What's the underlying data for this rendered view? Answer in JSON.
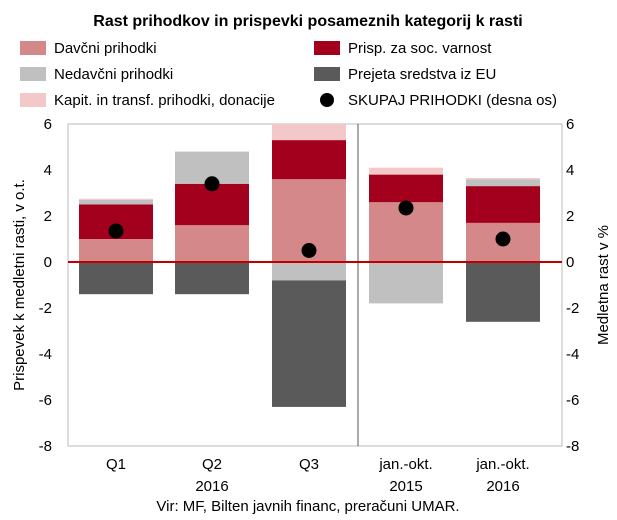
{
  "chart_data": {
    "type": "bar",
    "title": "Rast prihodkov in prispevki posameznih kategorij k rasti",
    "ylabel": "Prispevek k medletni rasti, v o.t.",
    "y2label": "Medletna rast v %",
    "ylim": [
      -8,
      6
    ],
    "y2lim": [
      -8,
      6
    ],
    "yticks": [
      "6",
      "4",
      "2",
      "0",
      "-2",
      "-4",
      "-6",
      "-8"
    ],
    "y2ticks": [
      "6",
      "4",
      "2",
      "0",
      "-2",
      "-4",
      "-6",
      "-8"
    ],
    "categories": [
      "Q1",
      "Q2",
      "Q3",
      "jan.-okt.",
      "jan.-okt."
    ],
    "group_labels": [
      "2016",
      "2015",
      "2016"
    ],
    "series": [
      {
        "name": "Davčni prihodki",
        "color": "#d4888a",
        "values": [
          1.0,
          1.6,
          3.6,
          2.6,
          1.7
        ]
      },
      {
        "name": "Prisp. za soc. varnost",
        "color": "#a3001d",
        "values": [
          1.5,
          1.8,
          1.7,
          1.2,
          1.6
        ]
      },
      {
        "name": "Nedavčni prihodki",
        "color": "#c0c0c0",
        "values": [
          0.2,
          1.4,
          -0.8,
          -1.8,
          0.3
        ]
      },
      {
        "name": "Prejeta sredstva iz EU",
        "color": "#5a5a5a",
        "values": [
          -1.4,
          -1.4,
          -5.5,
          0.0,
          -2.6
        ]
      },
      {
        "name": "Kapit. in transf. prihodki, donacije",
        "color": "#f2c8c8",
        "values": [
          0.05,
          0.0,
          0.7,
          0.3,
          0.05
        ]
      },
      {
        "name": "SKUPAJ PRIHODKI (desna os)",
        "color": "#000000",
        "values": [
          1.35,
          3.4,
          0.5,
          2.35,
          1.0
        ],
        "marker": "dot"
      }
    ],
    "grid": false,
    "legend": "top",
    "zero_line_color": "#c00000",
    "source": "Vir: MF, Bilten javnih financ, preračuni UMAR."
  }
}
